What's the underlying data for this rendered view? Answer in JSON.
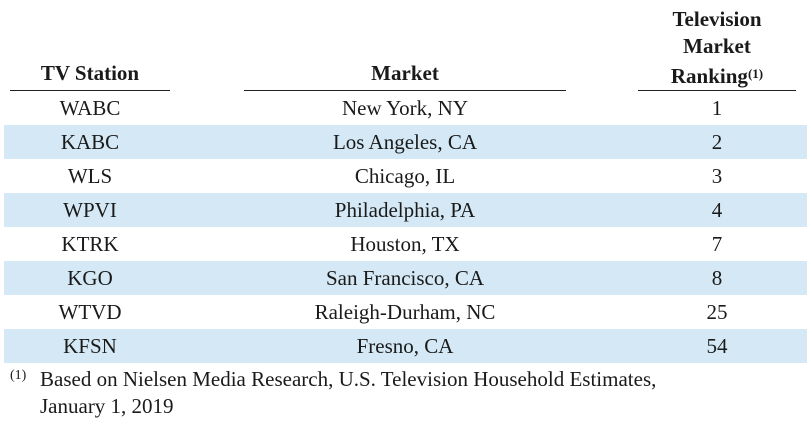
{
  "table": {
    "headers": {
      "station": "TV Station",
      "market": "Market",
      "ranking_line1": "Television",
      "ranking_line2": "Market",
      "ranking_line3": "Ranking",
      "ranking_note_marker": "(1)"
    },
    "rows": [
      {
        "station": "WABC",
        "market": "New York, NY",
        "rank": "1"
      },
      {
        "station": "KABC",
        "market": "Los Angeles, CA",
        "rank": "2"
      },
      {
        "station": "WLS",
        "market": "Chicago, IL",
        "rank": "3"
      },
      {
        "station": "WPVI",
        "market": "Philadelphia, PA",
        "rank": "4"
      },
      {
        "station": "KTRK",
        "market": "Houston, TX",
        "rank": "7"
      },
      {
        "station": "KGO",
        "market": "San Francisco, CA",
        "rank": "8"
      },
      {
        "station": "WTVD",
        "market": "Raleigh-Durham, NC",
        "rank": "25"
      },
      {
        "station": "KFSN",
        "market": "Fresno, CA",
        "rank": "54"
      }
    ],
    "shade_color": "#d4e9f5"
  },
  "footnote": {
    "marker": "(1)",
    "line1": "Based on Nielsen Media Research, U.S. Television Household Estimates,",
    "line2": "January 1, 2019"
  }
}
